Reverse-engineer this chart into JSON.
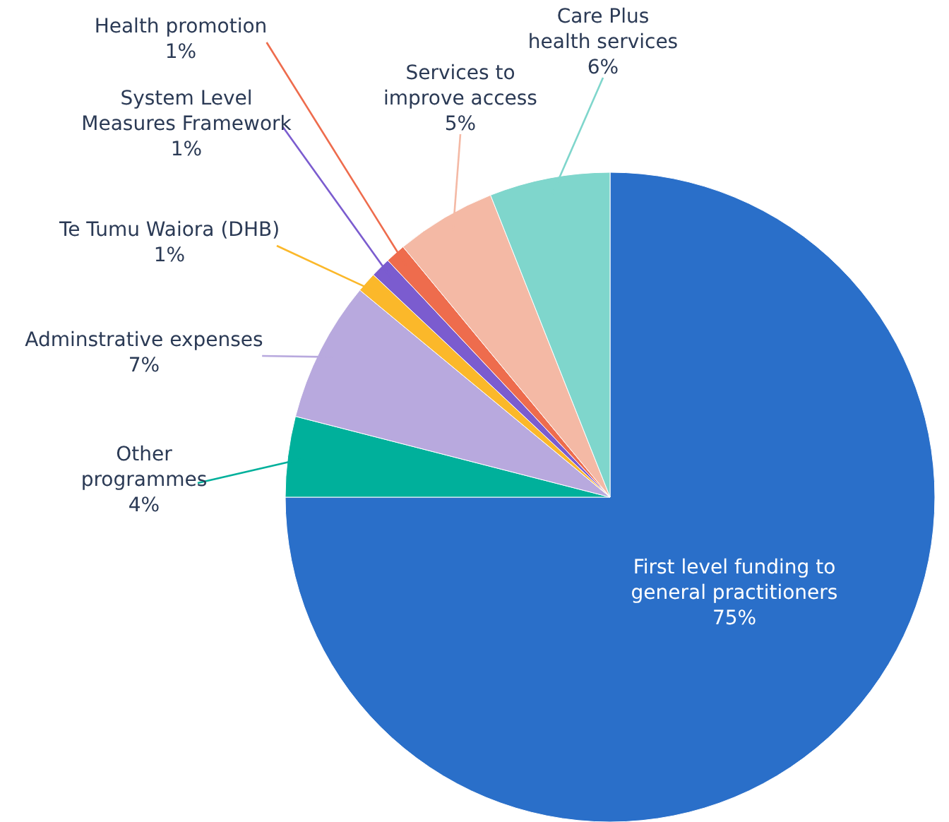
{
  "chart_data": {
    "type": "pie",
    "categories": [
      "First level funding to general practitioners",
      "Other programmes",
      "Adminstrative expenses",
      "Te Tumu Waiora (DHB)",
      "System Level Measures Framework",
      "Health promotion",
      "Services to improve access",
      "Care Plus health services"
    ],
    "values": [
      75,
      4,
      7,
      1,
      1,
      1,
      5,
      6
    ],
    "colors": [
      "#2a6fc9",
      "#00b09b",
      "#b8a9de",
      "#fbb82a",
      "#7b5ccf",
      "#ee6c4d",
      "#f4b9a5",
      "#7fd6cc"
    ],
    "value_labels": [
      "75%",
      "4%",
      "7%",
      "1%",
      "1%",
      "1%",
      "5%",
      "6%"
    ]
  }
}
